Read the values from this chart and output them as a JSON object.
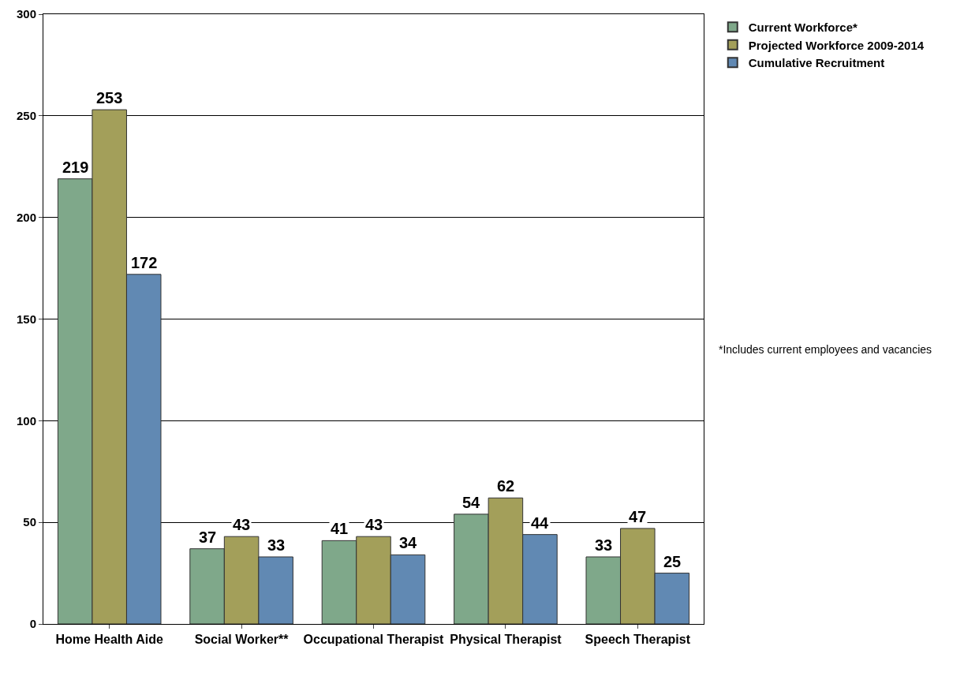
{
  "chart_data": {
    "type": "bar",
    "categories": [
      "Home Health Aide",
      "Social Worker**",
      "Occupational Therapist",
      "Physical Therapist",
      "Speech Therapist"
    ],
    "series": [
      {
        "name": "Current Workforce*",
        "color": "#7fa88a",
        "values": [
          219,
          37,
          41,
          54,
          33
        ]
      },
      {
        "name": "Projected Workforce 2009-2014",
        "color": "#a39f5a",
        "values": [
          253,
          43,
          43,
          62,
          47
        ]
      },
      {
        "name": "Cumulative Recruitment",
        "color": "#6189b3",
        "values": [
          172,
          33,
          34,
          44,
          25
        ]
      }
    ],
    "ylim": [
      0,
      300
    ],
    "yticks": [
      0,
      50,
      100,
      150,
      200,
      250,
      300
    ],
    "grid": "y",
    "legend": "top right",
    "data_labels": true,
    "annotations": [
      "*Includes current employees and vacancies"
    ]
  }
}
